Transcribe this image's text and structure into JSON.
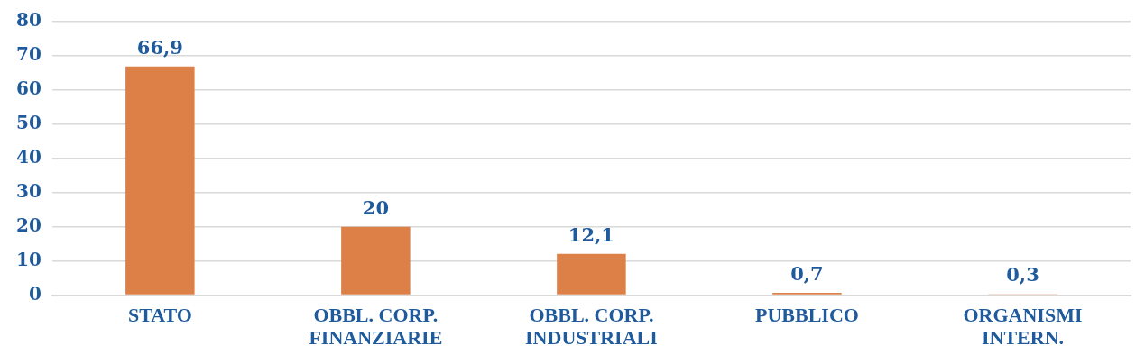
{
  "chart_data": {
    "type": "bar",
    "categories": [
      "STATO",
      "OBBL. CORP.\nFINANZIARIE",
      "OBBL. CORP.\nINDUSTRIALI",
      "PUBBLICO",
      "ORGANISMI\nINTERN."
    ],
    "values": [
      66.9,
      20,
      12.1,
      0.7,
      0.3
    ],
    "color": "#dd8047",
    "ylim": [
      0,
      80
    ],
    "yticks": [
      0,
      10,
      20,
      30,
      40,
      50,
      60,
      70,
      80
    ],
    "value_labels": [
      "66,9",
      "20",
      "12,1",
      "0,7",
      "0,3"
    ],
    "grid": "y",
    "legend": false
  }
}
